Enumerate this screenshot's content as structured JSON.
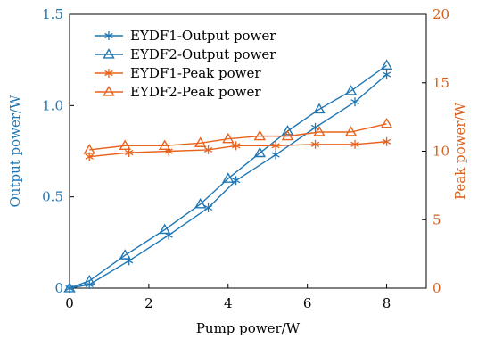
{
  "chart_data": {
    "type": "line",
    "xlabel": "Pump power/W",
    "ylabel_left": "Output power/W",
    "ylabel_right": "Peak power/W",
    "xlim": [
      0,
      9
    ],
    "ylim_left": [
      0,
      1.5
    ],
    "ylim_right": [
      0,
      20
    ],
    "xticks": [
      "0",
      "2",
      "4",
      "6",
      "8"
    ],
    "yticks_left": [
      "0",
      "0.5",
      "1.0",
      "1.5"
    ],
    "yticks_right": [
      "0",
      "5",
      "10",
      "15",
      "20"
    ],
    "grid": false,
    "legend_position": "top-left",
    "colors": {
      "left_axis": "#1f77b4",
      "right_axis": "#d95f1a",
      "blue": "#1f77b4",
      "orange": "#e8621c"
    },
    "series": [
      {
        "name": "EYDF1-Output power",
        "axis": "left",
        "marker": "asterisk",
        "color": "#1f77b4",
        "x": [
          0,
          0.5,
          1.5,
          2.5,
          3.5,
          4.2,
          5.2,
          6.2,
          7.2,
          8.0
        ],
        "y": [
          0.0,
          0.02,
          0.15,
          0.29,
          0.44,
          0.59,
          0.73,
          0.88,
          1.02,
          1.17
        ]
      },
      {
        "name": "EYDF2-Output power",
        "axis": "left",
        "marker": "triangle",
        "color": "#1f77b4",
        "x": [
          0,
          0.5,
          1.4,
          2.4,
          3.3,
          4.0,
          4.8,
          5.5,
          6.3,
          7.1,
          8.0
        ],
        "y": [
          0.0,
          0.04,
          0.18,
          0.32,
          0.46,
          0.6,
          0.74,
          0.86,
          0.98,
          1.08,
          1.22
        ]
      },
      {
        "name": "EYDF1-Peak power",
        "axis": "right",
        "marker": "asterisk",
        "color": "#e8621c",
        "x": [
          0.5,
          1.5,
          2.5,
          3.5,
          4.2,
          5.2,
          6.2,
          7.2,
          8.0
        ],
        "y": [
          9.6,
          9.9,
          10.0,
          10.1,
          10.4,
          10.4,
          10.5,
          10.5,
          10.7
        ]
      },
      {
        "name": "EYDF2-Peak power",
        "axis": "right",
        "marker": "triangle",
        "color": "#e8621c",
        "x": [
          0.5,
          1.4,
          2.4,
          3.3,
          4.0,
          4.8,
          5.5,
          6.3,
          7.1,
          8.0
        ],
        "y": [
          10.1,
          10.4,
          10.4,
          10.6,
          10.9,
          11.1,
          11.1,
          11.4,
          11.4,
          12.0
        ]
      }
    ]
  }
}
